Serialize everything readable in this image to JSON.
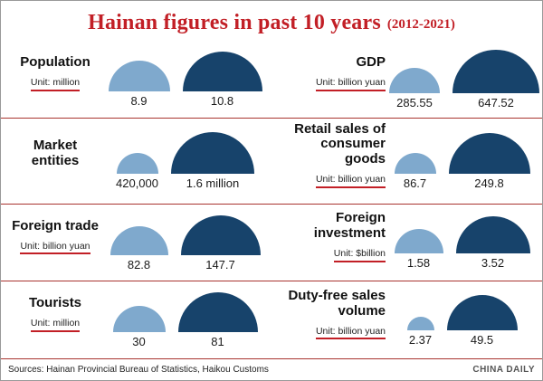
{
  "title": {
    "main": "Hainan figures in past 10 years",
    "range": "(2012-2021)"
  },
  "footer": {
    "sources": "Sources: Hainan Provincial Bureau of Statistics, Haikou Customs",
    "brand": "CHINA DAILY"
  },
  "colors": {
    "light_blue": "#7fa9cd",
    "dark_blue": "#17436b",
    "title_red": "#c21f26",
    "divider_red": "#a93430"
  },
  "chart_data": {
    "type": "bar",
    "variant": "paired-semicircle comparison",
    "comparison_years": [
      "2012",
      "2021"
    ],
    "legend_position": "none",
    "metrics": [
      {
        "label": "Population",
        "unit": "Unit: million",
        "value_2012": "8.9",
        "value_2021": "10.8",
        "num_2012": 8.9,
        "num_2021": 10.8,
        "w_small": 68,
        "w_large": 88
      },
      {
        "label": "GDP",
        "unit": "Unit: billion yuan",
        "value_2012": "285.55",
        "value_2021": "647.52",
        "num_2012": 285.55,
        "num_2021": 647.52,
        "w_small": 56,
        "w_large": 96
      },
      {
        "label": "Market entities",
        "unit": "",
        "value_2012": "420,000",
        "value_2021": "1.6 million",
        "num_2012": 420000,
        "num_2021": 1600000,
        "w_small": 46,
        "w_large": 92
      },
      {
        "label": "Retail sales of consumer goods",
        "unit": "Unit: billion yuan",
        "value_2012": "86.7",
        "value_2021": "249.8",
        "num_2012": 86.7,
        "num_2021": 249.8,
        "w_small": 46,
        "w_large": 90
      },
      {
        "label": "Foreign trade",
        "unit": "Unit: billion yuan",
        "value_2012": "82.8",
        "value_2021": "147.7",
        "num_2012": 82.8,
        "num_2021": 147.7,
        "w_small": 64,
        "w_large": 88
      },
      {
        "label": "Foreign investment",
        "unit": "Unit: $billion",
        "value_2012": "1.58",
        "value_2021": "3.52",
        "num_2012": 1.58,
        "num_2021": 3.52,
        "w_small": 54,
        "w_large": 82
      },
      {
        "label": "Tourists",
        "unit": "Unit: million",
        "value_2012": "30",
        "value_2021": "81",
        "num_2012": 30,
        "num_2021": 81,
        "w_small": 58,
        "w_large": 88
      },
      {
        "label": "Duty-free sales volume",
        "unit": "Unit: billion yuan",
        "value_2012": "2.37",
        "value_2021": "49.5",
        "num_2012": 2.37,
        "num_2021": 49.5,
        "w_small": 30,
        "w_large": 78
      }
    ]
  }
}
